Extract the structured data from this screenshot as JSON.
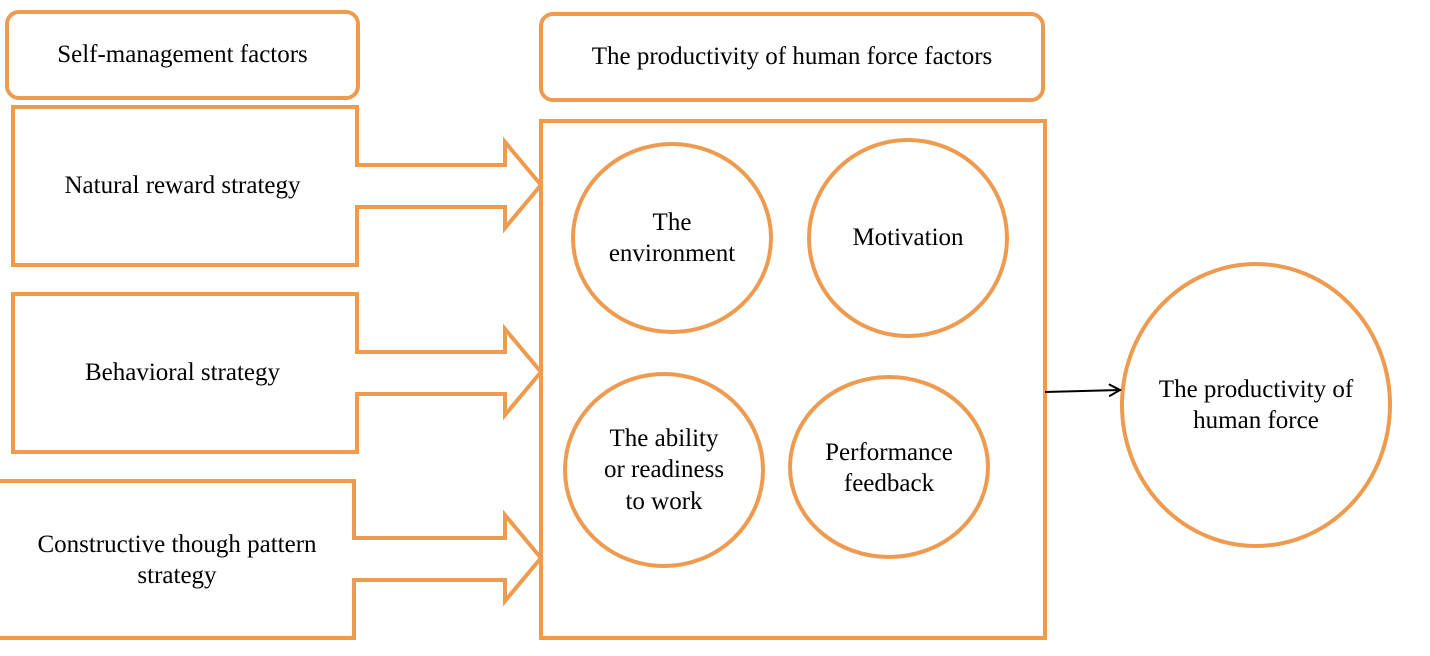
{
  "colors": {
    "accent": "#EE9A4F",
    "connector": "#000000",
    "text": "#000000",
    "background": "#FFFFFF"
  },
  "headers": {
    "left": "Self-management factors",
    "center": "The productivity of human force factors"
  },
  "strategies": [
    "Natural reward strategy",
    "Behavioral strategy",
    "Constructive though pattern\nstrategy"
  ],
  "factors": [
    "The\nenvironment",
    "Motivation",
    "The ability\nor readiness\nto work",
    "Performance\nfeedback"
  ],
  "outcome": "The productivity of\nhuman force"
}
